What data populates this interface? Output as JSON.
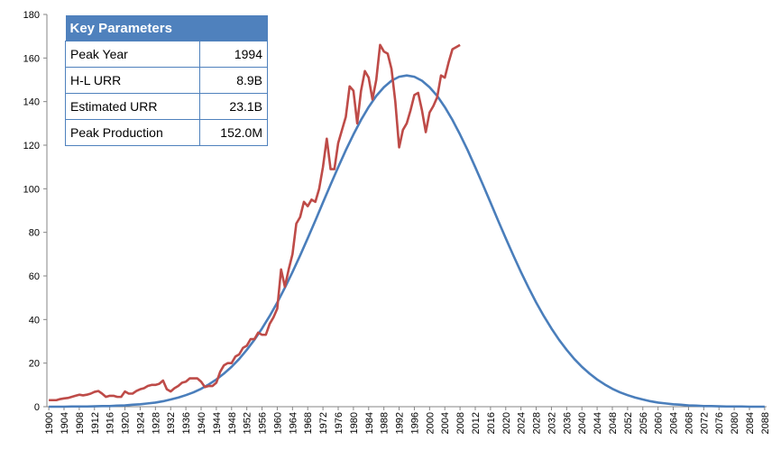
{
  "chart_data": {
    "type": "line",
    "xlim": [
      1899.5,
      2088.5
    ],
    "ylim": [
      0,
      180
    ],
    "yticks": [
      0,
      20,
      40,
      60,
      80,
      100,
      120,
      140,
      160,
      180
    ],
    "xticks": [
      1900,
      1904,
      1908,
      1912,
      1916,
      1920,
      1924,
      1928,
      1932,
      1936,
      1940,
      1944,
      1948,
      1952,
      1956,
      1960,
      1964,
      1968,
      1972,
      1976,
      1980,
      1984,
      1988,
      1992,
      1996,
      2000,
      2004,
      2008,
      2012,
      2016,
      2020,
      2024,
      2028,
      2032,
      2036,
      2040,
      2044,
      2048,
      2052,
      2056,
      2060,
      2064,
      2068,
      2072,
      2076,
      2080,
      2084,
      2088
    ],
    "series": [
      {
        "color": "#4a7ebb",
        "x": [
          1900,
          1902,
          1904,
          1906,
          1908,
          1910,
          1912,
          1914,
          1916,
          1918,
          1920,
          1922,
          1924,
          1926,
          1928,
          1930,
          1932,
          1934,
          1936,
          1938,
          1940,
          1942,
          1944,
          1946,
          1948,
          1950,
          1952,
          1954,
          1956,
          1958,
          1960,
          1962,
          1964,
          1966,
          1968,
          1970,
          1972,
          1974,
          1976,
          1978,
          1980,
          1982,
          1984,
          1986,
          1988,
          1990,
          1992,
          1994,
          1996,
          1998,
          2000,
          2002,
          2004,
          2006,
          2008,
          2010,
          2012,
          2014,
          2016,
          2018,
          2020,
          2022,
          2024,
          2026,
          2028,
          2030,
          2032,
          2034,
          2036,
          2038,
          2040,
          2042,
          2044,
          2046,
          2048,
          2050,
          2052,
          2054,
          2056,
          2058,
          2060,
          2062,
          2064,
          2066,
          2068,
          2070,
          2072,
          2074,
          2076,
          2078,
          2080,
          2082,
          2084,
          2086,
          2088
        ],
        "values": [
          0,
          0,
          0,
          0.1,
          0.1,
          0.1,
          0.2,
          0.3,
          0.3,
          0.5,
          0.6,
          0.9,
          1.1,
          1.5,
          1.9,
          2.5,
          3.3,
          4.2,
          5.3,
          6.6,
          8.2,
          10.2,
          12.5,
          15.2,
          18.3,
          21.9,
          26.1,
          30.7,
          35.9,
          41.6,
          47.8,
          54.6,
          61.8,
          69.4,
          77.3,
          85.4,
          93.7,
          101.9,
          109.9,
          117.7,
          124.9,
          131.6,
          137.5,
          142.6,
          146.6,
          149.6,
          151.4,
          152,
          151.4,
          149.6,
          146.6,
          142.6,
          137.5,
          131.6,
          124.9,
          117.7,
          109.9,
          101.9,
          93.7,
          85.4,
          77.3,
          69.4,
          61.8,
          54.6,
          47.8,
          41.6,
          35.9,
          30.7,
          26.1,
          21.9,
          18.3,
          15.2,
          12.5,
          10.2,
          8.2,
          6.6,
          5.3,
          4.2,
          3.3,
          2.5,
          1.9,
          1.5,
          1.1,
          0.9,
          0.6,
          0.5,
          0.3,
          0.3,
          0.2,
          0.1,
          0.1,
          0.1,
          0,
          0,
          0
        ]
      },
      {
        "color": "#be4b48",
        "x": [
          1900,
          1901,
          1902,
          1903,
          1904,
          1905,
          1906,
          1907,
          1908,
          1909,
          1910,
          1911,
          1912,
          1913,
          1914,
          1915,
          1916,
          1917,
          1918,
          1919,
          1920,
          1921,
          1922,
          1923,
          1924,
          1925,
          1926,
          1927,
          1928,
          1929,
          1930,
          1931,
          1932,
          1933,
          1934,
          1935,
          1936,
          1937,
          1938,
          1939,
          1940,
          1941,
          1942,
          1943,
          1944,
          1945,
          1946,
          1947,
          1948,
          1949,
          1950,
          1951,
          1952,
          1953,
          1954,
          1955,
          1956,
          1957,
          1958,
          1959,
          1960,
          1961,
          1962,
          1963,
          1964,
          1965,
          1966,
          1967,
          1968,
          1969,
          1970,
          1971,
          1972,
          1973,
          1974,
          1975,
          1976,
          1977,
          1978,
          1979,
          1980,
          1981,
          1982,
          1983,
          1984,
          1985,
          1986,
          1987,
          1988,
          1989,
          1990,
          1991,
          1992,
          1993,
          1994,
          1995,
          1996,
          1997,
          1998,
          1999,
          2000,
          2001,
          2002,
          2003,
          2004,
          2005,
          2006,
          2007,
          2008
        ],
        "values": [
          3,
          3,
          3,
          3.5,
          3.8,
          4,
          4.5,
          5,
          5.5,
          5.2,
          5.5,
          6,
          6.8,
          7.2,
          6,
          4.5,
          5,
          5,
          4.5,
          4.5,
          7,
          6,
          6,
          7.2,
          8,
          8.5,
          9.5,
          10,
          10,
          10.5,
          12,
          8,
          7,
          8.5,
          9.5,
          11,
          11.5,
          13,
          13,
          13,
          11.5,
          9,
          9.5,
          9.5,
          11,
          16,
          19,
          20,
          20,
          23,
          24,
          27,
          28,
          31,
          31,
          34,
          33,
          33,
          38,
          41,
          45,
          63,
          55,
          63,
          70,
          84,
          87,
          94,
          92,
          95,
          94,
          100,
          110,
          123,
          109,
          109,
          121,
          127,
          133,
          147,
          145,
          130,
          145,
          154,
          151,
          141,
          150,
          166,
          163,
          162,
          155,
          140,
          119,
          127,
          130,
          136,
          143,
          144,
          136,
          126,
          135,
          138,
          142,
          152,
          151,
          158,
          164,
          165,
          166
        ]
      }
    ],
    "table": {
      "title": "Key Parameters",
      "rows": [
        [
          "Peak Year",
          "1994"
        ],
        [
          "H-L URR",
          "8.9B"
        ],
        [
          "Estimated URR",
          "23.1B"
        ],
        [
          "Peak Production",
          "152.0M"
        ]
      ]
    }
  }
}
